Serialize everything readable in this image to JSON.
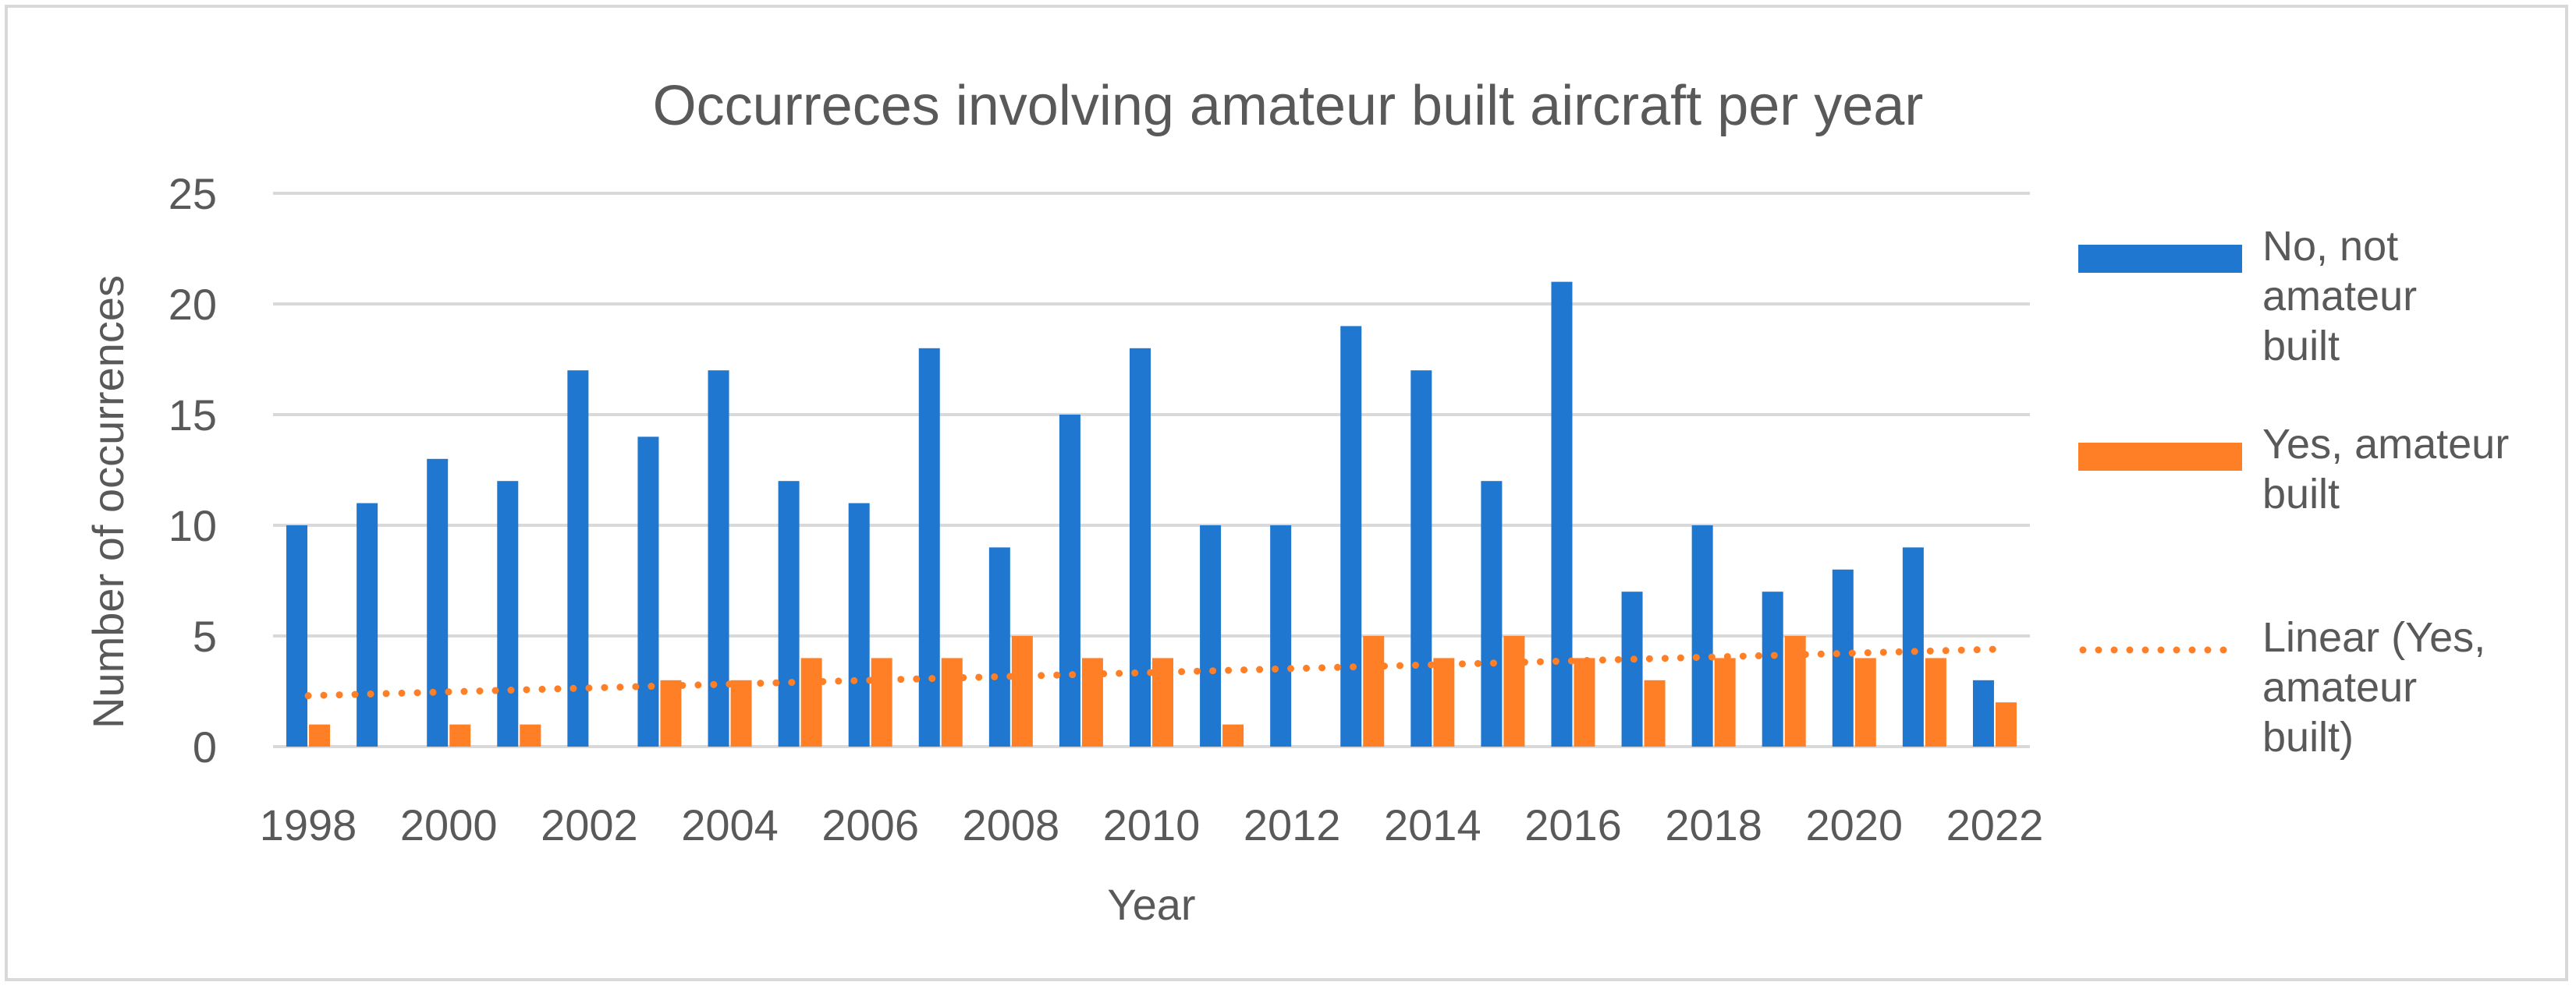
{
  "chart_data": {
    "type": "bar",
    "title": "Occurreces involving amateur built aircraft per year",
    "xlabel": "Year",
    "ylabel": "Number of occurrences",
    "ylim": [
      0,
      25
    ],
    "yticks": [
      0,
      5,
      10,
      15,
      20,
      25
    ],
    "grid": true,
    "legend_position": "right",
    "categories": [
      "1998",
      "1999",
      "2000",
      "2001",
      "2002",
      "2003",
      "2004",
      "2005",
      "2006",
      "2007",
      "2008",
      "2009",
      "2010",
      "2011",
      "2012",
      "2013",
      "2014",
      "2015",
      "2016",
      "2017",
      "2018",
      "2019",
      "2020",
      "2021",
      "2022"
    ],
    "x_tick_labels": [
      "1998",
      "2000",
      "2002",
      "2004",
      "2006",
      "2008",
      "2010",
      "2012",
      "2014",
      "2016",
      "2018",
      "2020",
      "2022"
    ],
    "series": [
      {
        "name": "No, not amateur built",
        "color": "#1f77d0",
        "values": [
          10,
          11,
          13,
          12,
          17,
          14,
          17,
          12,
          11,
          18,
          9,
          15,
          18,
          10,
          10,
          19,
          17,
          12,
          21,
          7,
          10,
          7,
          8,
          9,
          3
        ]
      },
      {
        "name": "Yes, amateur built",
        "color": "#ff7f27",
        "values": [
          1,
          0,
          1,
          1,
          0,
          3,
          3,
          4,
          4,
          4,
          5,
          4,
          4,
          1,
          0,
          5,
          4,
          5,
          4,
          3,
          4,
          5,
          4,
          4,
          2
        ]
      }
    ],
    "trendline": {
      "name": "Linear (Yes, amateur built)",
      "of_series": "Yes, amateur built",
      "type": "linear",
      "color": "#ff7f27",
      "start": 2.3,
      "end": 4.4
    },
    "legend": [
      {
        "key": "series0",
        "lines": [
          "No, not",
          "amateur",
          "built"
        ]
      },
      {
        "key": "series1",
        "lines": [
          "Yes, amateur",
          "built"
        ]
      },
      {
        "key": "trend",
        "lines": [
          "Linear (Yes,",
          "amateur",
          "built)"
        ]
      }
    ]
  }
}
